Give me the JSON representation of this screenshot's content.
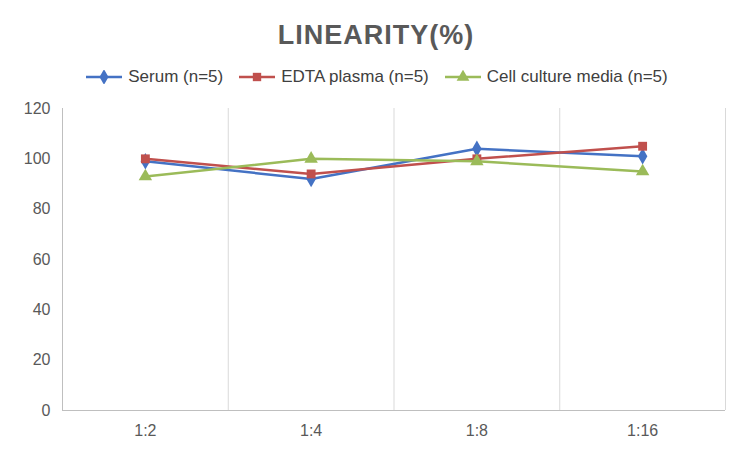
{
  "chart_data": {
    "type": "line",
    "title": "LINEARITY(%)",
    "categories": [
      "1:2",
      "1:4",
      "1:8",
      "1:16"
    ],
    "series": [
      {
        "name": "Serum (n=5)",
        "color": "#4472c4",
        "marker": "diamond",
        "values": [
          99,
          92,
          104,
          101
        ]
      },
      {
        "name": "EDTA plasma (n=5)",
        "color": "#c0504d",
        "marker": "square",
        "values": [
          100,
          94,
          100,
          105
        ]
      },
      {
        "name": "Cell culture media (n=5)",
        "color": "#9bbb59",
        "marker": "triangle",
        "values": [
          93,
          100,
          99,
          95
        ]
      }
    ],
    "ylim": [
      0,
      120
    ],
    "yticks": [
      0,
      20,
      40,
      60,
      80,
      100,
      120
    ],
    "grid": true,
    "legend": "top"
  }
}
